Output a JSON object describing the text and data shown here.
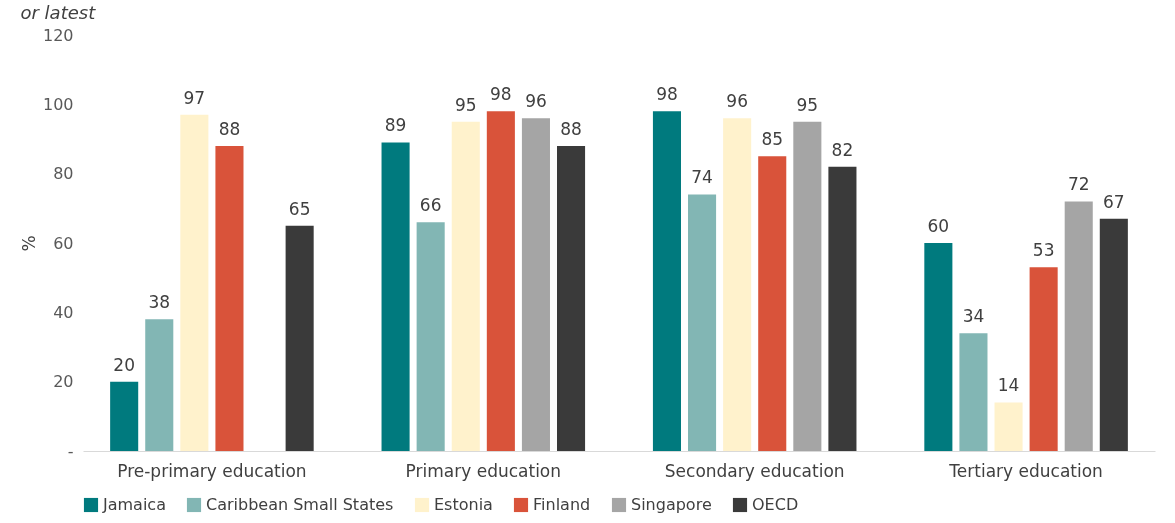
{
  "chart_data": {
    "type": "bar",
    "subtitle": "or latest",
    "ylabel": "%",
    "categories": [
      "Pre-primary education",
      "Primary education",
      "Secondary education",
      "Tertiary education"
    ],
    "series": [
      {
        "name": "Jamaica",
        "color": "#007a7e",
        "values": [
          20,
          89,
          98,
          60
        ]
      },
      {
        "name": "Caribbean Small States",
        "color": "#82b6b4",
        "values": [
          38,
          66,
          74,
          34
        ]
      },
      {
        "name": "Estonia",
        "color": "#fff2cc",
        "values": [
          97,
          95,
          96,
          14
        ]
      },
      {
        "name": "Finland",
        "color": "#d9533a",
        "values": [
          88,
          98,
          85,
          53
        ]
      },
      {
        "name": "Singapore",
        "color": "#a5a5a5",
        "values": [
          null,
          96,
          95,
          72
        ]
      },
      {
        "name": "OECD",
        "color": "#3a3a3a",
        "values": [
          65,
          88,
          82,
          67
        ]
      }
    ],
    "ylim": [
      0,
      120
    ],
    "yticks": [
      {
        "value": 0,
        "label": "-"
      },
      20,
      40,
      60,
      80,
      100,
      120
    ],
    "data_labels": true,
    "legend": "bottom",
    "grid": false
  }
}
